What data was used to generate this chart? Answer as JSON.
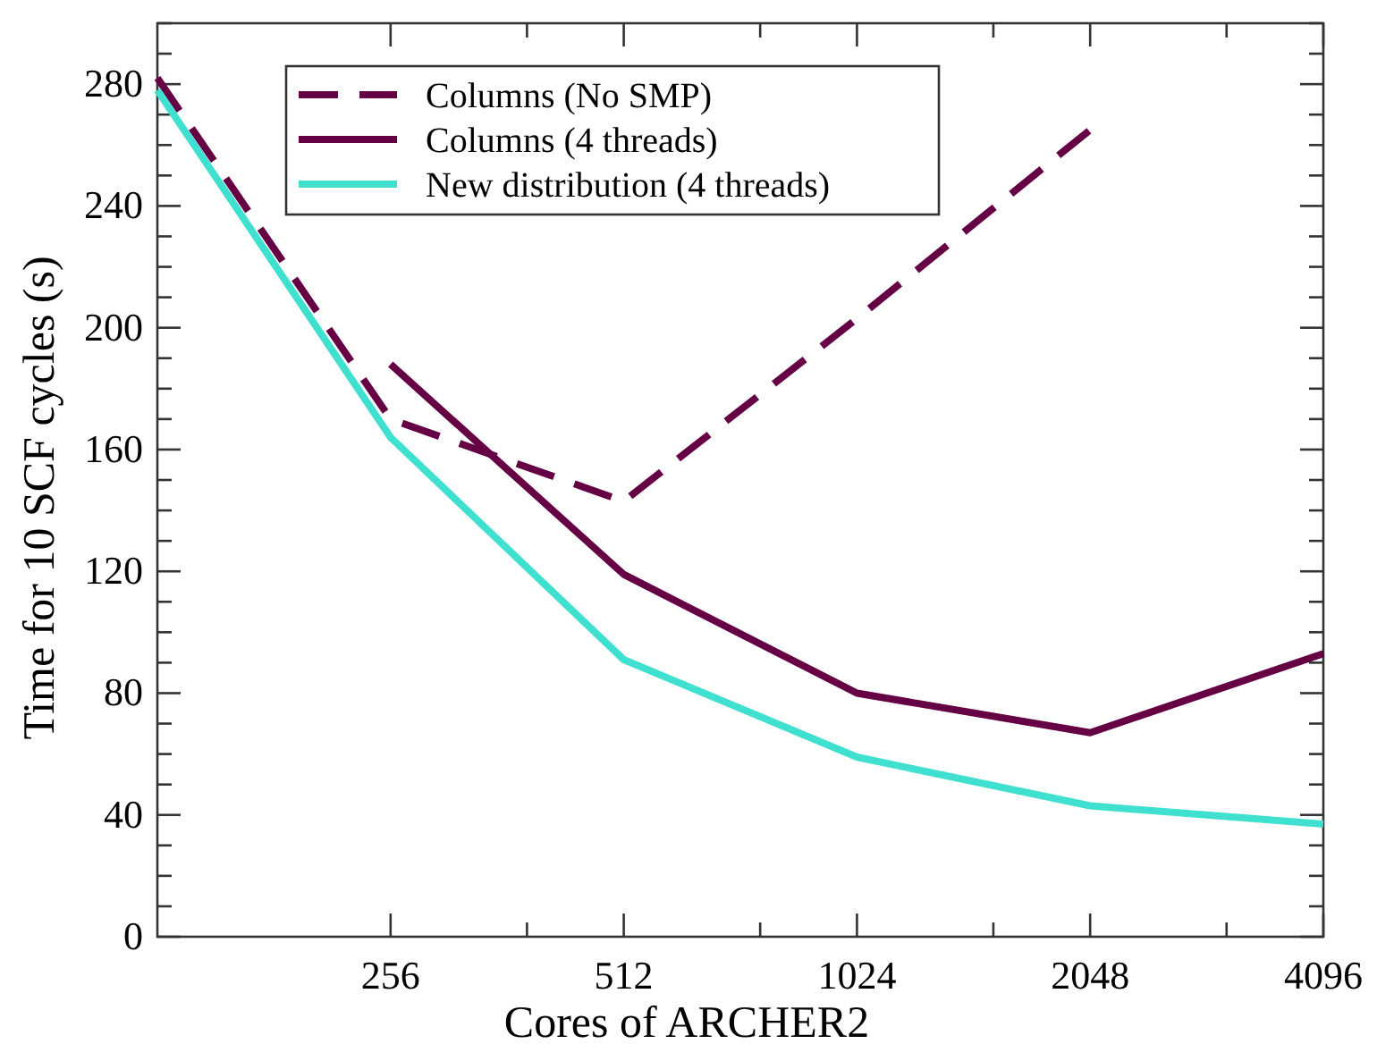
{
  "chart_data": {
    "type": "line",
    "xlabel": "Cores of ARCHER2",
    "ylabel": "Time for 10 SCF cycles (s)",
    "log": "x",
    "xlim": [
      128,
      4096
    ],
    "ylim": [
      0,
      300
    ],
    "xticks": [
      256,
      {
        "value": 384,
        "label": null
      },
      512,
      {
        "value": 768,
        "label": null
      },
      1024,
      {
        "value": 1536,
        "label": null
      },
      2048,
      {
        "value": 3072,
        "label": null
      },
      4096
    ],
    "yticks": [
      0,
      {
        "value": 10,
        "label": null
      },
      {
        "value": 20,
        "label": null
      },
      {
        "value": 30,
        "label": null
      },
      40,
      {
        "value": 50,
        "label": null
      },
      {
        "value": 60,
        "label": null
      },
      {
        "value": 70,
        "label": null
      },
      80,
      {
        "value": 90,
        "label": null
      },
      {
        "value": 100,
        "label": null
      },
      {
        "value": 110,
        "label": null
      },
      120,
      {
        "value": 130,
        "label": null
      },
      {
        "value": 140,
        "label": null
      },
      {
        "value": 150,
        "label": null
      },
      160,
      {
        "value": 170,
        "label": null
      },
      {
        "value": 180,
        "label": null
      },
      {
        "value": 190,
        "label": null
      },
      200,
      {
        "value": 210,
        "label": null
      },
      {
        "value": 220,
        "label": null
      },
      {
        "value": 230,
        "label": null
      },
      240,
      {
        "value": 250,
        "label": null
      },
      {
        "value": 260,
        "label": null
      },
      {
        "value": 270,
        "label": null
      },
      280,
      {
        "value": 290,
        "label": null
      },
      {
        "value": 300,
        "label": null
      }
    ],
    "grid": false,
    "legend": "top",
    "series": [
      {
        "name": "Columns (No SMP)",
        "color": "#660044",
        "line_style": "dashed",
        "x": [
          128,
          256,
          512,
          1024,
          2048
        ],
        "values": [
          282,
          170,
          143,
          203,
          265
        ]
      },
      {
        "name": "Columns (4 threads)",
        "color": "#660044",
        "line_style": "solid",
        "x": [
          256,
          512,
          1024,
          2048,
          4096
        ],
        "values": [
          188,
          119,
          80,
          67,
          93
        ]
      },
      {
        "name": "New distribution (4 threads)",
        "color": "#40e0d0",
        "line_style": "solid",
        "x": [
          128,
          256,
          512,
          1024,
          2048,
          4096
        ],
        "values": [
          278,
          164,
          91,
          59,
          43,
          37
        ]
      }
    ]
  }
}
